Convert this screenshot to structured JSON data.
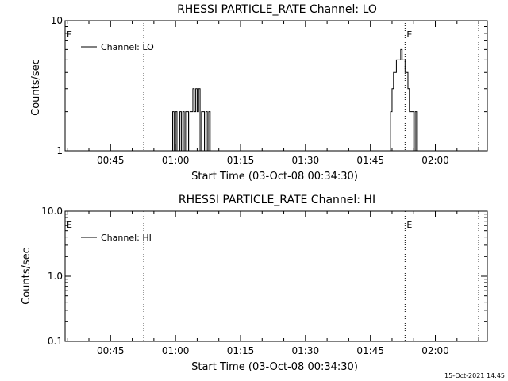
{
  "chart_data": [
    {
      "type": "line",
      "title": "RHESSI PARTICLE_RATE Channel: LO",
      "xlabel": "Start Time (03-Oct-08 00:34:30)",
      "ylabel": "Counts/sec",
      "yscale": "log",
      "xlim": [
        "00:34:30",
        "02:12:00"
      ],
      "ylim": [
        1,
        10
      ],
      "xticks": [
        "00:45",
        "01:00",
        "01:15",
        "01:30",
        "01:45",
        "02:00"
      ],
      "yticks": [
        1,
        10
      ],
      "yticklabels": [
        "1",
        "10"
      ],
      "grid": false,
      "legend": "top-left",
      "series": [
        {
          "name": "Channel: LO",
          "x": [
            "00:59:00",
            "00:59:20",
            "00:59:40",
            "01:00:00",
            "01:00:20",
            "01:00:40",
            "01:01:00",
            "01:01:20",
            "01:01:40",
            "01:02:00",
            "01:02:20",
            "01:02:40",
            "01:03:00",
            "01:03:20",
            "01:03:40",
            "01:04:00",
            "01:04:20",
            "01:04:40",
            "01:05:00",
            "01:05:20",
            "01:05:40",
            "01:06:00",
            "01:06:20",
            "01:06:40",
            "01:07:00",
            "01:07:20",
            "01:07:40",
            "01:08:00",
            "01:08:20",
            "01:08:40",
            "01:49:00",
            "01:49:20",
            "01:49:40",
            "01:50:00",
            "01:50:20",
            "01:50:40",
            "01:51:00",
            "01:51:20",
            "01:51:40",
            "01:52:00",
            "01:52:20",
            "01:52:40",
            "01:53:00",
            "01:53:20",
            "01:53:40",
            "01:54:00",
            "01:54:20",
            "01:54:40",
            "01:55:00",
            "01:55:20",
            "01:55:40",
            "01:56:00",
            "01:56:20",
            "01:56:40",
            "01:57:00"
          ],
          "y": [
            1,
            2,
            1,
            2,
            1,
            1,
            2,
            1,
            2,
            1,
            2,
            2,
            1,
            2,
            2,
            3,
            2,
            3,
            2,
            3,
            1,
            2,
            2,
            1,
            2,
            1,
            2,
            1,
            1,
            1,
            1,
            1,
            2,
            3,
            4,
            4,
            5,
            5,
            5,
            6,
            5,
            5,
            4,
            4,
            3,
            2,
            2,
            2,
            1,
            2,
            1,
            1,
            1,
            1,
            1
          ]
        }
      ],
      "annotations": [
        {
          "text": "E",
          "x": "00:34:30"
        },
        {
          "text": "E",
          "x": "01:53:00"
        }
      ],
      "vlines": [
        "00:52:40",
        "01:53:00",
        "02:10:00"
      ]
    },
    {
      "type": "line",
      "title": "RHESSI PARTICLE_RATE Channel: HI",
      "xlabel": "Start Time (03-Oct-08 00:34:30)",
      "ylabel": "Counts/sec",
      "yscale": "log",
      "xlim": [
        "00:34:30",
        "02:12:00"
      ],
      "ylim": [
        0.1,
        10
      ],
      "xticks": [
        "00:45",
        "01:00",
        "01:15",
        "01:30",
        "01:45",
        "02:00"
      ],
      "yticks": [
        0.1,
        1,
        10
      ],
      "yticklabels": [
        "0.1",
        "1.0",
        "10.0"
      ],
      "grid": false,
      "legend": "top-left",
      "series": [
        {
          "name": "Channel: HI",
          "x": [],
          "y": []
        }
      ],
      "annotations": [
        {
          "text": "E",
          "x": "00:34:30"
        },
        {
          "text": "E",
          "x": "01:53:00"
        }
      ],
      "vlines": [
        "00:52:40",
        "01:53:00",
        "02:10:00"
      ]
    }
  ],
  "timestamp": "15-Oct-2021 14:45"
}
